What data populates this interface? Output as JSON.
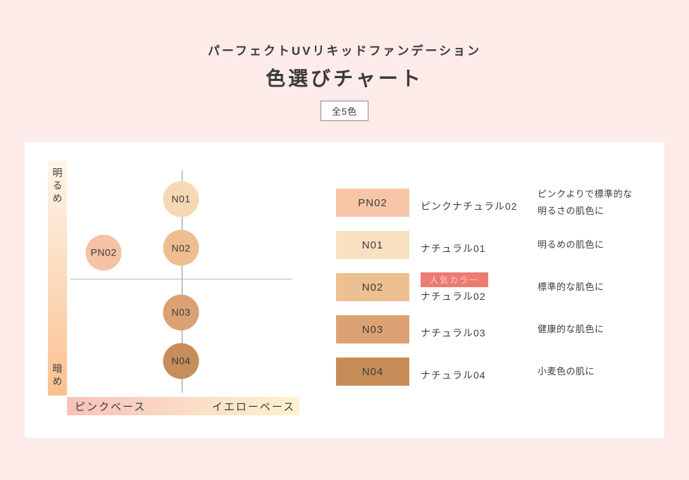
{
  "header": {
    "subtitle": "パーフェクトUVリキッドファンデーション",
    "title": "色選びチャート",
    "total_label": "全5色"
  },
  "colors": {
    "page_bg": "#fcebe9",
    "card_bg": "#ffffff",
    "popular_badge_bg": "#ec7b72",
    "popular_badge_text": "#fbd2ca",
    "brightness_bar_top": "#fdf5e9",
    "brightness_bar_bottom": "#fac190",
    "base_bar_left": "#f9c2ba",
    "base_bar_right": "#fdf3cf"
  },
  "chart_data": {
    "type": "scatter",
    "title": "色選びチャート",
    "subtitle": "パーフェクトUVリキッドファンデーション",
    "total": "全5色",
    "y_axis": {
      "top": "明るめ",
      "bottom": "暗め"
    },
    "x_axis": {
      "left": "ピンクベース",
      "right": "イエローベース"
    },
    "points": [
      {
        "id": "PN02",
        "x": 0.15,
        "y": 0.37,
        "color": "#f5c3a4"
      },
      {
        "id": "N01",
        "x": 0.5,
        "y": 0.13,
        "color": "#f7d8b5"
      },
      {
        "id": "N02",
        "x": 0.5,
        "y": 0.35,
        "color": "#eebe8e"
      },
      {
        "id": "N03",
        "x": 0.5,
        "y": 0.64,
        "color": "#dba173"
      },
      {
        "id": "N04",
        "x": 0.5,
        "y": 0.86,
        "color": "#c78e5b"
      }
    ]
  },
  "legend": {
    "popular_badge": "人気カラー",
    "rows": [
      {
        "code": "PN02",
        "swatch": "#f6c6a7",
        "name": "ピンクナチュラル02",
        "popular": false,
        "desc": [
          "ピンクよりで標準的な",
          "明るさの肌色に"
        ]
      },
      {
        "code": "N01",
        "swatch": "#f8e0c1",
        "name": "ナチュラル01",
        "popular": false,
        "desc": [
          "明るめの肌色に"
        ]
      },
      {
        "code": "N02",
        "swatch": "#edc092",
        "name": "ナチュラル02",
        "popular": true,
        "desc": [
          "標準的な肌色に"
        ]
      },
      {
        "code": "N03",
        "swatch": "#dca273",
        "name": "ナチュラル03",
        "popular": false,
        "desc": [
          "健康的な肌色に"
        ]
      },
      {
        "code": "N04",
        "swatch": "#c68d58",
        "name": "ナチュラル04",
        "popular": false,
        "desc": [
          "小麦色の肌に"
        ]
      }
    ]
  }
}
